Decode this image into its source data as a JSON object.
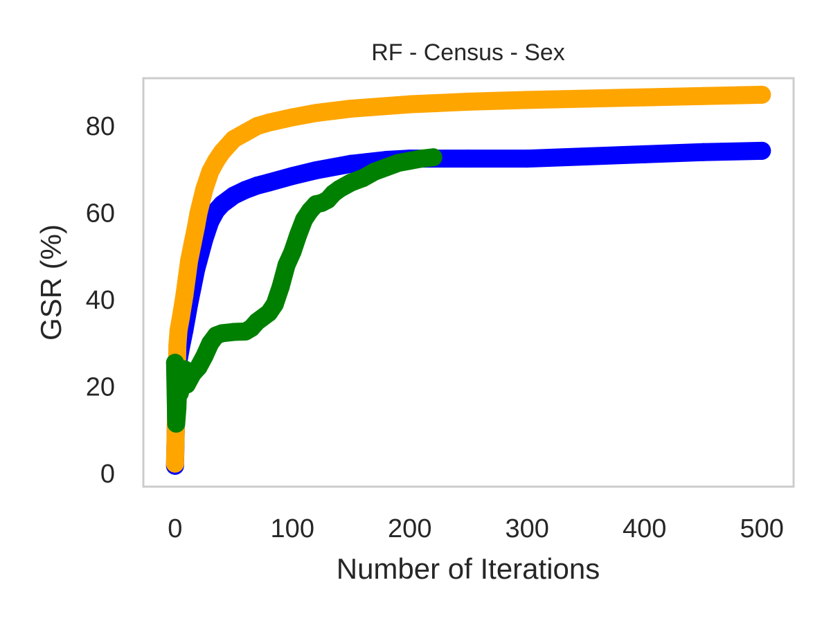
{
  "chart_data": {
    "type": "line",
    "title": "RF - Census - Sex",
    "xlabel": "Number of Iterations",
    "ylabel": "GSR (%)",
    "xlim": [
      -27,
      527
    ],
    "ylim": [
      -3,
      91
    ],
    "xticks": [
      0,
      100,
      200,
      300,
      400,
      500
    ],
    "yticks": [
      0,
      20,
      40,
      60,
      80
    ],
    "grid": false,
    "frame_color": "#cccccc",
    "series": [
      {
        "color": "#0000ff",
        "x": [
          0,
          1,
          2,
          3,
          5,
          8,
          10,
          12,
          15,
          18,
          20,
          25,
          30,
          35,
          40,
          50,
          60,
          70,
          80,
          100,
          120,
          150,
          180,
          200,
          250,
          300,
          350,
          400,
          450,
          500
        ],
        "y": [
          1.8,
          15.5,
          22,
          26,
          29,
          33,
          36,
          39,
          43,
          47,
          49,
          54,
          58,
          60.5,
          62,
          64,
          65.3,
          66.3,
          67,
          68.5,
          69.8,
          71.3,
          72.2,
          72.5,
          72.5,
          72.5,
          73,
          73.5,
          74,
          74.3
        ]
      },
      {
        "color": "#ffa500",
        "x": [
          0,
          1,
          2,
          3,
          5,
          8,
          10,
          12,
          15,
          18,
          20,
          25,
          30,
          35,
          40,
          50,
          60,
          70,
          80,
          100,
          120,
          150,
          200,
          250,
          300,
          350,
          400,
          450,
          500
        ],
        "y": [
          2.3,
          15.5,
          29.5,
          33,
          36,
          41,
          45,
          49,
          53,
          57,
          60,
          65.5,
          69.5,
          72,
          74,
          77,
          78.5,
          80,
          80.8,
          82,
          83,
          84,
          85,
          85.6,
          86,
          86.3,
          86.6,
          86.9,
          87.2
        ]
      },
      {
        "color": "#008000",
        "x": [
          0,
          1,
          2,
          3,
          4,
          6,
          8,
          10,
          15,
          20,
          25,
          30,
          35,
          40,
          50,
          60,
          65,
          70,
          80,
          85,
          90,
          95,
          100,
          105,
          110,
          115,
          120,
          125,
          130,
          135,
          140,
          150,
          160,
          170,
          180,
          190,
          200,
          210,
          220
        ],
        "y": [
          25.5,
          11.5,
          15,
          22,
          18.5,
          20.5,
          24,
          20.5,
          23,
          24.5,
          27,
          30,
          31.8,
          32.3,
          32.6,
          32.7,
          33.5,
          35,
          37,
          39,
          43,
          48,
          51,
          55,
          58.5,
          60.5,
          62,
          62.3,
          63,
          64.5,
          65.5,
          67,
          68,
          69.5,
          70.5,
          71.5,
          72,
          72.5,
          72.8
        ]
      }
    ]
  }
}
